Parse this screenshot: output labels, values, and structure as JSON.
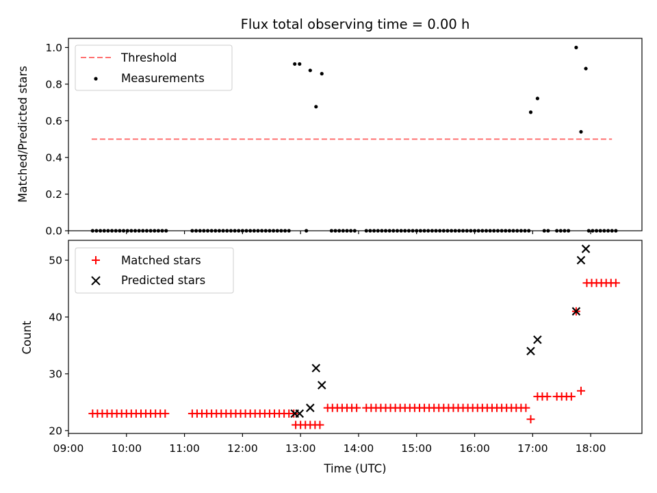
{
  "chart_data": [
    {
      "type": "scatter",
      "title": "Flux total observing time = 0.00 h",
      "xlabel": "",
      "ylabel": "Matched/Predicted stars",
      "xlim": [
        "09:00",
        "18:53"
      ],
      "ylim": [
        0,
        1.05
      ],
      "yticks": [
        0.0,
        0.2,
        0.4,
        0.6,
        0.8,
        1.0
      ],
      "ytick_labels": [
        "0.0",
        "0.2",
        "0.4",
        "0.6",
        "0.8",
        "1.0"
      ],
      "grid": false,
      "legend": "top-left",
      "legend_entries": [
        "Threshold",
        "Measurements"
      ],
      "threshold": {
        "name": "Threshold",
        "value": 0.5,
        "x_range": [
          "09:24",
          "18:22"
        ],
        "color": "#ff7070",
        "style": "dashed"
      },
      "series": [
        {
          "name": "Measurements",
          "color": "#000000",
          "marker": "dot",
          "points": [
            [
              "09:25",
              0
            ],
            [
              "09:29",
              0
            ],
            [
              "09:33",
              0
            ],
            [
              "09:37",
              0
            ],
            [
              "09:41",
              0
            ],
            [
              "09:45",
              0
            ],
            [
              "09:49",
              0
            ],
            [
              "09:53",
              0
            ],
            [
              "09:57",
              0
            ],
            [
              "10:01",
              0
            ],
            [
              "10:05",
              0
            ],
            [
              "10:09",
              0
            ],
            [
              "10:13",
              0
            ],
            [
              "10:17",
              0
            ],
            [
              "10:21",
              0
            ],
            [
              "10:25",
              0
            ],
            [
              "10:29",
              0
            ],
            [
              "10:33",
              0
            ],
            [
              "10:37",
              0
            ],
            [
              "10:41",
              0
            ],
            [
              "11:08",
              0
            ],
            [
              "11:12",
              0
            ],
            [
              "11:16",
              0
            ],
            [
              "11:20",
              0
            ],
            [
              "11:24",
              0
            ],
            [
              "11:28",
              0
            ],
            [
              "11:32",
              0
            ],
            [
              "11:36",
              0
            ],
            [
              "11:40",
              0
            ],
            [
              "11:44",
              0
            ],
            [
              "11:48",
              0
            ],
            [
              "11:52",
              0
            ],
            [
              "11:56",
              0
            ],
            [
              "12:00",
              0
            ],
            [
              "12:04",
              0
            ],
            [
              "12:08",
              0
            ],
            [
              "12:12",
              0
            ],
            [
              "12:16",
              0
            ],
            [
              "12:20",
              0
            ],
            [
              "12:24",
              0
            ],
            [
              "12:28",
              0
            ],
            [
              "12:32",
              0
            ],
            [
              "12:36",
              0
            ],
            [
              "12:40",
              0
            ],
            [
              "12:44",
              0
            ],
            [
              "12:48",
              0
            ],
            [
              "12:54",
              0.91
            ],
            [
              "12:59",
              0.91
            ],
            [
              "13:06",
              0
            ],
            [
              "13:10",
              0.875
            ],
            [
              "13:16",
              0.677
            ],
            [
              "13:22",
              0.857
            ],
            [
              "13:32",
              0
            ],
            [
              "13:36",
              0
            ],
            [
              "13:40",
              0
            ],
            [
              "13:44",
              0
            ],
            [
              "13:48",
              0
            ],
            [
              "13:52",
              0
            ],
            [
              "13:56",
              0
            ],
            [
              "14:08",
              0
            ],
            [
              "14:12",
              0
            ],
            [
              "14:16",
              0
            ],
            [
              "14:20",
              0
            ],
            [
              "14:24",
              0
            ],
            [
              "14:28",
              0
            ],
            [
              "14:32",
              0
            ],
            [
              "14:36",
              0
            ],
            [
              "14:40",
              0
            ],
            [
              "14:44",
              0
            ],
            [
              "14:48",
              0
            ],
            [
              "14:52",
              0
            ],
            [
              "14:56",
              0
            ],
            [
              "15:00",
              0
            ],
            [
              "15:04",
              0
            ],
            [
              "15:08",
              0
            ],
            [
              "15:12",
              0
            ],
            [
              "15:16",
              0
            ],
            [
              "15:20",
              0
            ],
            [
              "15:24",
              0
            ],
            [
              "15:28",
              0
            ],
            [
              "15:32",
              0
            ],
            [
              "15:36",
              0
            ],
            [
              "15:40",
              0
            ],
            [
              "15:44",
              0
            ],
            [
              "15:48",
              0
            ],
            [
              "15:52",
              0
            ],
            [
              "15:56",
              0
            ],
            [
              "16:00",
              0
            ],
            [
              "16:04",
              0
            ],
            [
              "16:08",
              0
            ],
            [
              "16:12",
              0
            ],
            [
              "16:16",
              0
            ],
            [
              "16:20",
              0
            ],
            [
              "16:24",
              0
            ],
            [
              "16:28",
              0
            ],
            [
              "16:32",
              0
            ],
            [
              "16:36",
              0
            ],
            [
              "16:40",
              0
            ],
            [
              "16:44",
              0
            ],
            [
              "16:48",
              0
            ],
            [
              "16:52",
              0
            ],
            [
              "16:56",
              0
            ],
            [
              "16:58",
              0.647
            ],
            [
              "17:05",
              0.722
            ],
            [
              "17:12",
              0
            ],
            [
              "17:16",
              0
            ],
            [
              "17:25",
              0
            ],
            [
              "17:29",
              0
            ],
            [
              "17:33",
              0
            ],
            [
              "17:37",
              0
            ],
            [
              "17:45",
              1.0
            ],
            [
              "17:50",
              0.54
            ],
            [
              "17:55",
              0.885
            ],
            [
              "17:58",
              0
            ],
            [
              "18:02",
              0
            ],
            [
              "18:06",
              0
            ],
            [
              "18:10",
              0
            ],
            [
              "18:14",
              0
            ],
            [
              "18:18",
              0
            ],
            [
              "18:22",
              0
            ],
            [
              "18:26",
              0
            ]
          ]
        }
      ]
    },
    {
      "type": "scatter",
      "title": "",
      "xlabel": "Time (UTC)",
      "ylabel": "Count",
      "xlim": [
        "09:00",
        "18:53"
      ],
      "ylim": [
        19.5,
        53.5
      ],
      "xticks": [
        "09:00",
        "10:00",
        "11:00",
        "12:00",
        "13:00",
        "14:00",
        "15:00",
        "16:00",
        "17:00",
        "18:00"
      ],
      "xtick_labels": [
        "09:00",
        "10:00",
        "11:00",
        "12:00",
        "13:00",
        "14:00",
        "15:00",
        "16:00",
        "17:00",
        "18:00"
      ],
      "yticks": [
        20,
        30,
        40,
        50
      ],
      "ytick_labels": [
        "20",
        "30",
        "40",
        "50"
      ],
      "grid": false,
      "legend": "top-left",
      "legend_entries": [
        "Matched stars",
        "Predicted stars"
      ],
      "series": [
        {
          "name": "Matched stars",
          "color": "#ff0000",
          "marker": "plus",
          "points": [
            [
              "09:25",
              23
            ],
            [
              "09:30",
              23
            ],
            [
              "09:35",
              23
            ],
            [
              "09:40",
              23
            ],
            [
              "09:45",
              23
            ],
            [
              "09:50",
              23
            ],
            [
              "09:55",
              23
            ],
            [
              "10:00",
              23
            ],
            [
              "10:05",
              23
            ],
            [
              "10:10",
              23
            ],
            [
              "10:15",
              23
            ],
            [
              "10:20",
              23
            ],
            [
              "10:25",
              23
            ],
            [
              "10:30",
              23
            ],
            [
              "10:35",
              23
            ],
            [
              "10:40",
              23
            ],
            [
              "11:08",
              23
            ],
            [
              "11:13",
              23
            ],
            [
              "11:18",
              23
            ],
            [
              "11:23",
              23
            ],
            [
              "11:28",
              23
            ],
            [
              "11:33",
              23
            ],
            [
              "11:38",
              23
            ],
            [
              "11:43",
              23
            ],
            [
              "11:48",
              23
            ],
            [
              "11:53",
              23
            ],
            [
              "11:58",
              23
            ],
            [
              "12:03",
              23
            ],
            [
              "12:08",
              23
            ],
            [
              "12:13",
              23
            ],
            [
              "12:18",
              23
            ],
            [
              "12:23",
              23
            ],
            [
              "12:28",
              23
            ],
            [
              "12:33",
              23
            ],
            [
              "12:38",
              23
            ],
            [
              "12:43",
              23
            ],
            [
              "12:48",
              23
            ],
            [
              "12:53",
              23
            ],
            [
              "12:55",
              21
            ],
            [
              "13:00",
              21
            ],
            [
              "13:05",
              21
            ],
            [
              "13:10",
              21
            ],
            [
              "13:15",
              21
            ],
            [
              "13:20",
              21
            ],
            [
              "13:28",
              24
            ],
            [
              "13:33",
              24
            ],
            [
              "13:38",
              24
            ],
            [
              "13:43",
              24
            ],
            [
              "13:48",
              24
            ],
            [
              "13:53",
              24
            ],
            [
              "13:58",
              24
            ],
            [
              "14:08",
              24
            ],
            [
              "14:13",
              24
            ],
            [
              "14:18",
              24
            ],
            [
              "14:23",
              24
            ],
            [
              "14:28",
              24
            ],
            [
              "14:33",
              24
            ],
            [
              "14:38",
              24
            ],
            [
              "14:43",
              24
            ],
            [
              "14:48",
              24
            ],
            [
              "14:53",
              24
            ],
            [
              "14:58",
              24
            ],
            [
              "15:03",
              24
            ],
            [
              "15:08",
              24
            ],
            [
              "15:13",
              24
            ],
            [
              "15:18",
              24
            ],
            [
              "15:23",
              24
            ],
            [
              "15:28",
              24
            ],
            [
              "15:33",
              24
            ],
            [
              "15:38",
              24
            ],
            [
              "15:43",
              24
            ],
            [
              "15:48",
              24
            ],
            [
              "15:53",
              24
            ],
            [
              "15:58",
              24
            ],
            [
              "16:03",
              24
            ],
            [
              "16:08",
              24
            ],
            [
              "16:13",
              24
            ],
            [
              "16:18",
              24
            ],
            [
              "16:23",
              24
            ],
            [
              "16:28",
              24
            ],
            [
              "16:33",
              24
            ],
            [
              "16:38",
              24
            ],
            [
              "16:43",
              24
            ],
            [
              "16:48",
              24
            ],
            [
              "16:53",
              24
            ],
            [
              "16:58",
              22
            ],
            [
              "17:05",
              26
            ],
            [
              "17:10",
              26
            ],
            [
              "17:15",
              26
            ],
            [
              "17:25",
              26
            ],
            [
              "17:30",
              26
            ],
            [
              "17:35",
              26
            ],
            [
              "17:40",
              26
            ],
            [
              "17:45",
              41
            ],
            [
              "17:50",
              27
            ],
            [
              "17:56",
              46
            ],
            [
              "18:01",
              46
            ],
            [
              "18:06",
              46
            ],
            [
              "18:11",
              46
            ],
            [
              "18:16",
              46
            ],
            [
              "18:21",
              46
            ],
            [
              "18:26",
              46
            ]
          ]
        },
        {
          "name": "Predicted stars",
          "color": "#000000",
          "marker": "x",
          "points": [
            [
              "12:54",
              23
            ],
            [
              "12:59",
              23
            ],
            [
              "13:10",
              24
            ],
            [
              "13:16",
              31
            ],
            [
              "13:22",
              28
            ],
            [
              "16:58",
              34
            ],
            [
              "17:05",
              36
            ],
            [
              "17:45",
              41
            ],
            [
              "17:50",
              50
            ],
            [
              "17:55",
              52
            ]
          ]
        }
      ]
    }
  ]
}
